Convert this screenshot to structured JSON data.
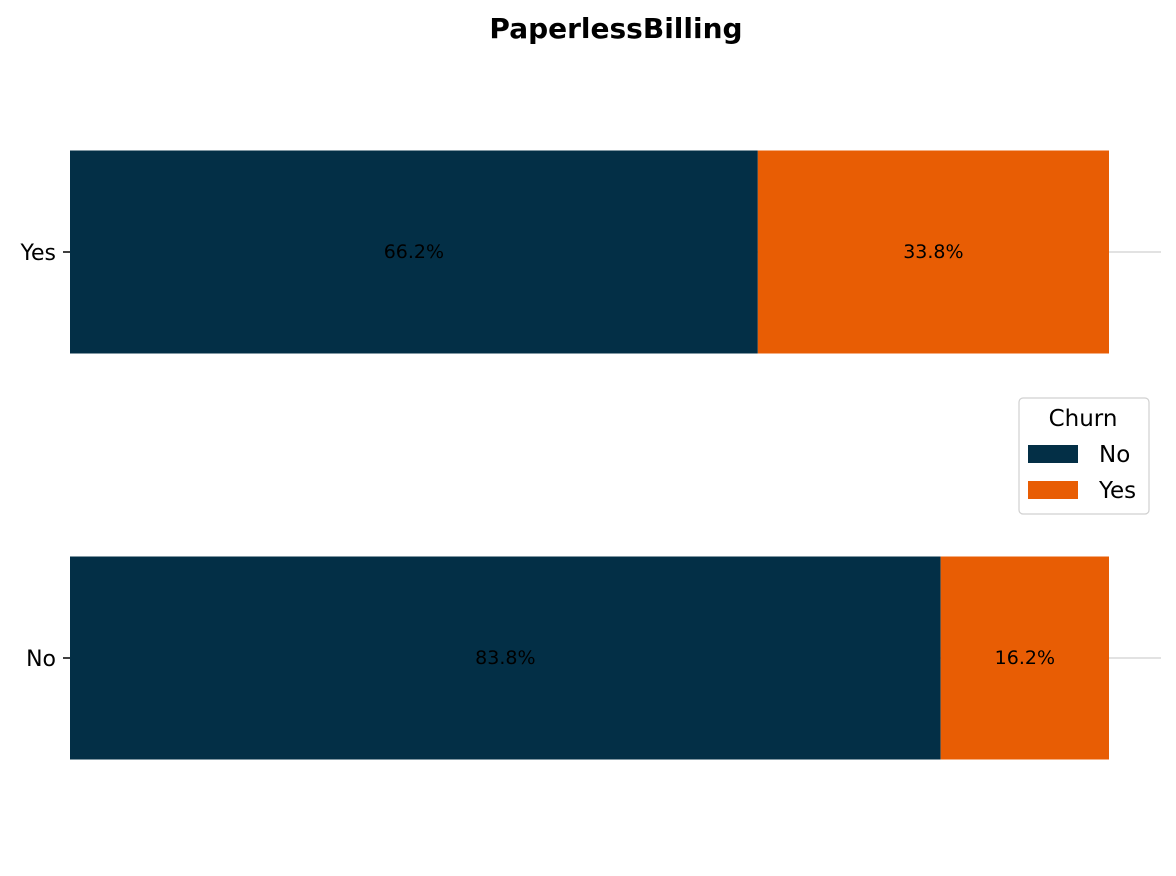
{
  "chart_data": {
    "type": "bar",
    "orientation": "horizontal",
    "stacked": true,
    "title": "PaperlessBilling",
    "xlabel": "",
    "ylabel": "",
    "categories": [
      "No",
      "Yes"
    ],
    "series": [
      {
        "name": "No",
        "values": [
          83.8,
          66.2
        ],
        "labels": [
          "83.8%",
          "66.2%"
        ],
        "color": "#032F46"
      },
      {
        "name": "Yes",
        "values": [
          16.2,
          33.8
        ],
        "labels": [
          "16.2%",
          "33.8%"
        ],
        "color": "#E85D04"
      }
    ],
    "xlim": [
      0,
      100
    ],
    "grid": false,
    "legend": {
      "title": "Churn",
      "entries": [
        "No",
        "Yes"
      ],
      "placement": "right"
    }
  },
  "colors": {
    "background": "#FFFFFF",
    "gridline": "#D9D9D9",
    "text": "#000000"
  }
}
